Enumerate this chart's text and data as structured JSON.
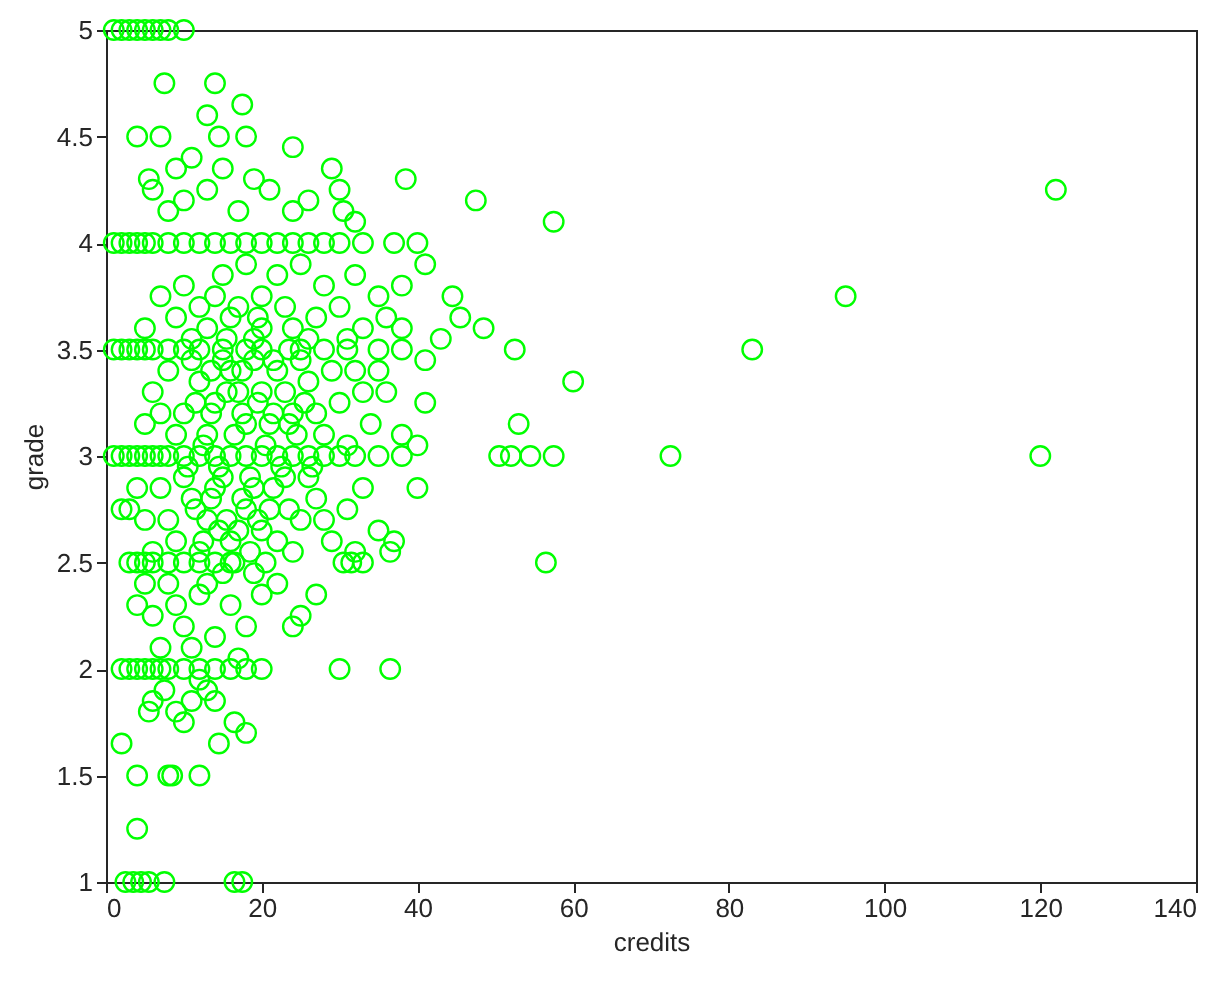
{
  "chart_data": {
    "type": "scatter",
    "xlabel": "credits",
    "ylabel": "grade",
    "color": "#00ff00",
    "marker": "circle",
    "xlim": [
      0,
      140
    ],
    "ylim": [
      1,
      5
    ],
    "xticks": [
      0,
      20,
      40,
      60,
      80,
      100,
      120,
      140
    ],
    "yticks": [
      1,
      1.5,
      2,
      2.5,
      3,
      3.5,
      4,
      4.5,
      5
    ],
    "x": [
      1,
      2,
      3,
      4,
      5,
      6,
      7,
      8,
      10,
      7.5,
      14,
      17.5,
      13,
      4,
      7,
      14.5,
      18,
      11,
      24,
      29,
      38.5,
      47.5,
      57.5,
      5.5,
      9,
      15,
      19,
      13,
      21,
      26,
      30,
      30.5,
      32,
      24,
      17,
      10,
      6,
      8,
      1,
      2,
      3,
      4,
      5,
      6,
      8,
      10,
      12,
      14,
      16,
      18,
      20,
      22,
      24,
      26,
      28,
      30,
      33,
      37,
      40,
      10,
      12,
      15,
      18,
      20,
      22,
      25,
      28,
      30,
      32,
      35,
      38,
      41,
      44.5,
      45.5,
      48.5,
      43,
      36,
      33,
      27,
      24,
      20,
      16,
      13,
      9,
      7,
      5,
      11,
      14,
      19,
      26,
      31,
      23,
      17,
      38,
      41,
      95,
      122,
      1,
      2,
      3,
      4,
      5,
      6,
      8,
      10,
      12,
      15,
      18,
      20,
      25,
      28,
      31,
      35,
      38,
      52.5,
      83,
      60,
      53,
      41,
      6,
      8,
      10,
      12,
      14,
      16,
      18,
      20,
      22,
      24,
      26,
      28,
      30,
      32,
      34,
      36,
      38,
      40,
      9,
      13,
      17,
      21,
      25,
      29,
      33,
      15,
      11,
      7,
      5,
      19,
      23,
      27,
      31,
      35,
      1,
      2,
      3,
      4,
      5,
      6,
      7,
      8,
      10,
      12,
      14,
      16,
      18,
      20,
      22,
      24,
      26,
      28,
      30,
      32,
      35,
      38,
      50.5,
      52,
      54.5,
      57.5,
      72.5,
      120,
      3,
      5,
      7,
      9,
      11,
      13,
      15,
      17,
      19,
      21,
      23,
      25,
      27,
      29,
      31,
      33,
      35,
      37,
      40,
      36.5,
      12,
      16,
      20,
      24,
      28,
      10,
      14,
      18,
      22,
      8,
      6,
      32,
      26,
      4,
      56.5,
      2,
      3,
      4,
      5,
      6,
      8,
      10,
      12,
      14,
      16,
      30.5,
      31.5,
      33,
      4,
      6,
      8,
      10,
      12,
      14,
      16,
      18,
      20,
      22,
      25,
      27,
      24,
      15,
      11,
      9,
      13,
      17,
      19,
      7,
      5,
      2,
      3,
      4,
      5,
      6,
      7,
      8,
      10,
      12,
      14,
      16,
      18,
      20,
      30,
      36.5,
      6,
      9,
      11,
      13,
      14,
      10,
      14.5,
      16.5,
      18,
      7.5,
      12,
      5.5,
      2,
      4,
      8,
      8.5,
      12,
      4,
      2.5,
      3.5,
      4.5,
      5.5,
      7.5,
      16.5,
      17.5,
      10.5,
      12.5,
      14.5,
      16.5,
      18.5,
      20.5,
      22.5,
      24.5,
      26.5,
      11.5,
      13.5,
      15.5,
      17.5,
      19.5,
      21.5,
      23.5,
      25.5,
      11.5,
      13.5,
      15.5,
      17.5,
      19.5,
      21.5,
      23.5,
      12.5,
      14.5,
      16.5,
      18.5,
      20.5,
      13.5,
      17.5,
      21.5,
      15.5,
      19.5,
      23.5
    ],
    "values": [
      5,
      5,
      5,
      5,
      5,
      5,
      5,
      5,
      5,
      4.75,
      4.75,
      4.65,
      4.6,
      4.5,
      4.5,
      4.5,
      4.5,
      4.4,
      4.45,
      4.35,
      4.3,
      4.2,
      4.1,
      4.3,
      4.35,
      4.35,
      4.3,
      4.25,
      4.25,
      4.2,
      4.25,
      4.15,
      4.1,
      4.15,
      4.15,
      4.2,
      4.25,
      4.15,
      4,
      4,
      4,
      4,
      4,
      4,
      4,
      4,
      4,
      4,
      4,
      4,
      4,
      4,
      4,
      4,
      4,
      4,
      4,
      4,
      4,
      3.8,
      3.7,
      3.85,
      3.9,
      3.75,
      3.85,
      3.9,
      3.8,
      3.7,
      3.85,
      3.75,
      3.8,
      3.9,
      3.75,
      3.65,
      3.6,
      3.55,
      3.65,
      3.6,
      3.65,
      3.6,
      3.6,
      3.65,
      3.6,
      3.65,
      3.75,
      3.6,
      3.55,
      3.75,
      3.55,
      3.55,
      3.55,
      3.7,
      3.7,
      3.6,
      3.45,
      3.75,
      4.25,
      3.5,
      3.5,
      3.5,
      3.5,
      3.5,
      3.5,
      3.5,
      3.5,
      3.5,
      3.5,
      3.5,
      3.5,
      3.5,
      3.5,
      3.5,
      3.5,
      3.5,
      3.5,
      3.5,
      3.35,
      3.15,
      3.25,
      3.3,
      3.4,
      3.2,
      3.35,
      3.25,
      3.4,
      3.15,
      3.3,
      3.4,
      3.2,
      3.35,
      3.1,
      3.25,
      3.4,
      3.15,
      3.3,
      3.1,
      3.05,
      3.1,
      3.1,
      3.3,
      3.15,
      3.45,
      3.4,
      3.3,
      3.45,
      3.45,
      3.2,
      3.15,
      3.45,
      3.3,
      3.2,
      3.05,
      3.4,
      3,
      3,
      3,
      3,
      3,
      3,
      3,
      3,
      3,
      3,
      3,
      3,
      3,
      3,
      3,
      3,
      3,
      3,
      3,
      3,
      3,
      3,
      3,
      3,
      3,
      3,
      3,
      3,
      2.75,
      2.7,
      2.85,
      2.6,
      2.8,
      2.7,
      2.9,
      2.65,
      2.85,
      2.75,
      2.9,
      2.7,
      2.8,
      2.6,
      2.75,
      2.85,
      2.65,
      2.6,
      2.85,
      2.55,
      2.55,
      2.6,
      2.65,
      2.55,
      2.7,
      2.9,
      2.85,
      2.75,
      2.6,
      2.7,
      2.55,
      2.55,
      2.9,
      2.85,
      2.5,
      2.75,
      2.5,
      2.5,
      2.5,
      2.5,
      2.5,
      2.5,
      2.5,
      2.5,
      2.5,
      2.5,
      2.5,
      2.5,
      2.3,
      2.25,
      2.4,
      2.2,
      2.35,
      2.15,
      2.3,
      2.2,
      2.35,
      2.4,
      2.25,
      2.35,
      2.2,
      2.45,
      2.1,
      2.3,
      2.4,
      2.05,
      2.45,
      2.1,
      2.4,
      2,
      2,
      2,
      2,
      2,
      2,
      2,
      2,
      2,
      2,
      2,
      2,
      2,
      2,
      2,
      1.85,
      1.8,
      1.85,
      1.9,
      1.85,
      1.75,
      1.65,
      1.75,
      1.7,
      1.9,
      1.95,
      1.8,
      1.65,
      1.5,
      1.5,
      1.5,
      1.5,
      1.25,
      1,
      1,
      1,
      1,
      1,
      1,
      1,
      2.95,
      3.05,
      2.95,
      3.1,
      2.9,
      3.05,
      2.95,
      3.1,
      2.95,
      3.25,
      3.2,
      3.3,
      3.2,
      3.25,
      3.2,
      3.15,
      3.25,
      2.75,
      2.8,
      2.7,
      2.8,
      2.7,
      2.85,
      2.75,
      2.6,
      2.65,
      2.5,
      2.55,
      2.5,
      3.4,
      3.4,
      3.45,
      3.55,
      3.65,
      3.5
    ]
  }
}
